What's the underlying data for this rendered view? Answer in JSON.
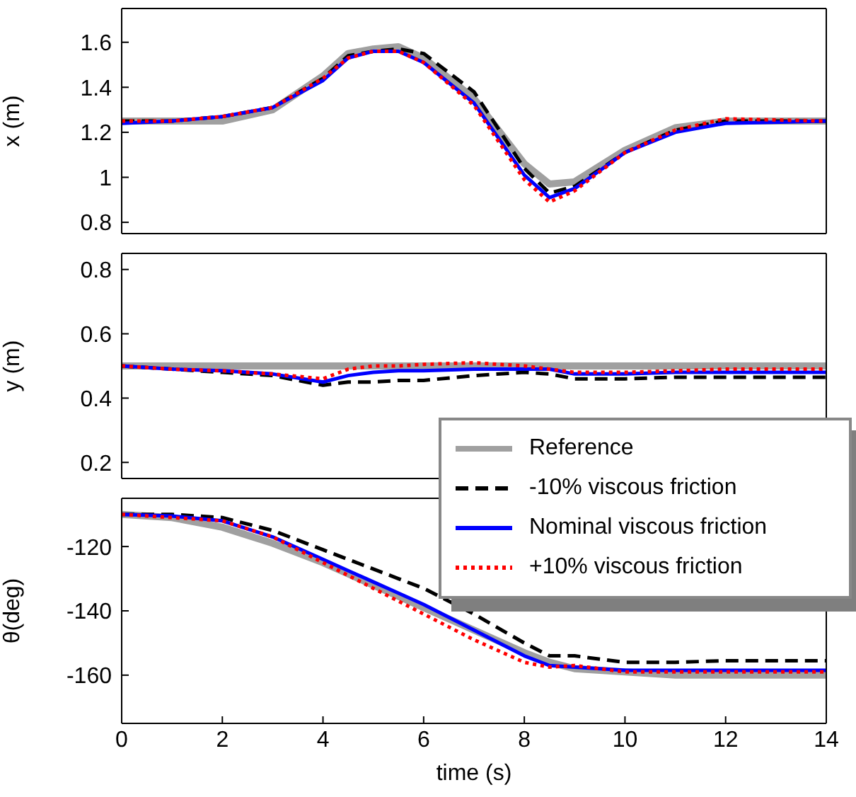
{
  "chart_data": [
    {
      "type": "line",
      "ylabel": "x (m)",
      "x": [
        0,
        1,
        2,
        3,
        4,
        4.5,
        5,
        5.5,
        6,
        7,
        8,
        8.5,
        9,
        10,
        11,
        12,
        14
      ],
      "xlim": [
        0,
        14
      ],
      "xticks": [
        0,
        2,
        4,
        6,
        8,
        10,
        12,
        14
      ],
      "ylim": [
        0.75,
        1.75
      ],
      "yticks": [
        0.8,
        1,
        1.2,
        1.4,
        1.6
      ],
      "tick_labels": "y",
      "grid": false,
      "legend": false,
      "series": [
        {
          "color": "#a0a0a0",
          "line_style": "solid",
          "values": [
            1.25,
            1.25,
            1.25,
            1.3,
            1.45,
            1.55,
            1.57,
            1.58,
            1.53,
            1.35,
            1.06,
            0.97,
            0.98,
            1.12,
            1.22,
            1.25,
            1.25
          ]
        },
        {
          "color": "#000000",
          "line_style": "dashed",
          "values": [
            1.25,
            1.25,
            1.27,
            1.31,
            1.44,
            1.54,
            1.56,
            1.57,
            1.55,
            1.38,
            1.04,
            0.93,
            0.96,
            1.11,
            1.21,
            1.25,
            1.25
          ]
        },
        {
          "color": "#0000ff",
          "line_style": "solid",
          "values": [
            1.24,
            1.25,
            1.27,
            1.31,
            1.43,
            1.53,
            1.56,
            1.56,
            1.51,
            1.33,
            1.01,
            0.91,
            0.95,
            1.11,
            1.2,
            1.24,
            1.25
          ]
        },
        {
          "color": "#ff0000",
          "line_style": "dotted",
          "values": [
            1.25,
            1.25,
            1.27,
            1.31,
            1.44,
            1.53,
            1.56,
            1.56,
            1.51,
            1.32,
            0.99,
            0.89,
            0.94,
            1.11,
            1.21,
            1.26,
            1.25
          ]
        }
      ]
    },
    {
      "type": "line",
      "ylabel": "y (m)",
      "x": [
        0,
        1,
        2,
        3,
        4,
        4.5,
        5,
        5.5,
        6,
        7,
        8,
        8.5,
        9,
        10,
        11,
        12,
        14
      ],
      "xlim": [
        0,
        14
      ],
      "xticks": [
        0,
        2,
        4,
        6,
        8,
        10,
        12,
        14
      ],
      "ylim": [
        0.15,
        0.85
      ],
      "yticks": [
        0.2,
        0.4,
        0.6,
        0.8
      ],
      "tick_labels": "y",
      "grid": false,
      "legend": "bottom right",
      "series": [
        {
          "name": "Reference",
          "color": "#a0a0a0",
          "line_style": "solid",
          "values": [
            0.5,
            0.5,
            0.5,
            0.5,
            0.5,
            0.5,
            0.5,
            0.5,
            0.5,
            0.5,
            0.5,
            0.5,
            0.5,
            0.5,
            0.5,
            0.5,
            0.5
          ]
        },
        {
          "name": "-10% viscous friction",
          "color": "#000000",
          "line_style": "dashed",
          "values": [
            0.5,
            0.49,
            0.48,
            0.47,
            0.44,
            0.45,
            0.45,
            0.455,
            0.455,
            0.47,
            0.48,
            0.475,
            0.46,
            0.46,
            0.465,
            0.465,
            0.465
          ]
        },
        {
          "name": "Nominal viscous friction",
          "color": "#0000ff",
          "line_style": "solid",
          "values": [
            0.5,
            0.49,
            0.485,
            0.475,
            0.45,
            0.47,
            0.48,
            0.485,
            0.485,
            0.49,
            0.49,
            0.49,
            0.475,
            0.475,
            0.48,
            0.48,
            0.48
          ]
        },
        {
          "name": "+10% viscous friction",
          "color": "#ff0000",
          "line_style": "dotted",
          "values": [
            0.5,
            0.49,
            0.485,
            0.475,
            0.46,
            0.49,
            0.5,
            0.5,
            0.505,
            0.51,
            0.5,
            0.49,
            0.48,
            0.48,
            0.485,
            0.49,
            0.49
          ]
        }
      ]
    },
    {
      "type": "line",
      "ylabel": "θ(deg)",
      "xlabel": "time (s)",
      "x": [
        0,
        1,
        2,
        3,
        4,
        4.5,
        5,
        5.5,
        6,
        7,
        8,
        8.5,
        9,
        10,
        11,
        12,
        14
      ],
      "xlim": [
        0,
        14
      ],
      "xticks": [
        0,
        2,
        4,
        6,
        8,
        10,
        12,
        14
      ],
      "ylim": [
        -175,
        -105
      ],
      "yticks": [
        -160,
        -140,
        -120
      ],
      "grid": false,
      "legend": false,
      "series": [
        {
          "color": "#a0a0a0",
          "line_style": "solid",
          "values": [
            -110,
            -111,
            -114,
            -119,
            -125,
            -128.5,
            -132,
            -135.5,
            -139,
            -146,
            -153,
            -156,
            -158,
            -159,
            -160,
            -160,
            -160
          ]
        },
        {
          "color": "#000000",
          "line_style": "dashed",
          "values": [
            -110,
            -110,
            -111,
            -115,
            -121,
            -124,
            -127,
            -130,
            -133,
            -141,
            -150,
            -154,
            -154,
            -156,
            -156,
            -155.5,
            -155.5
          ]
        },
        {
          "color": "#0000ff",
          "line_style": "solid",
          "values": [
            -110,
            -110.5,
            -112,
            -117,
            -124,
            -127.5,
            -131,
            -134.5,
            -138,
            -146,
            -154,
            -157,
            -157.5,
            -158.5,
            -158.5,
            -158.5,
            -158.5
          ]
        },
        {
          "color": "#ff0000",
          "line_style": "dotted",
          "values": [
            -110,
            -111,
            -112,
            -117,
            -125,
            -129,
            -133,
            -137,
            -141,
            -149,
            -156,
            -157.5,
            -157,
            -159,
            -159,
            -159,
            -159
          ]
        }
      ]
    }
  ]
}
